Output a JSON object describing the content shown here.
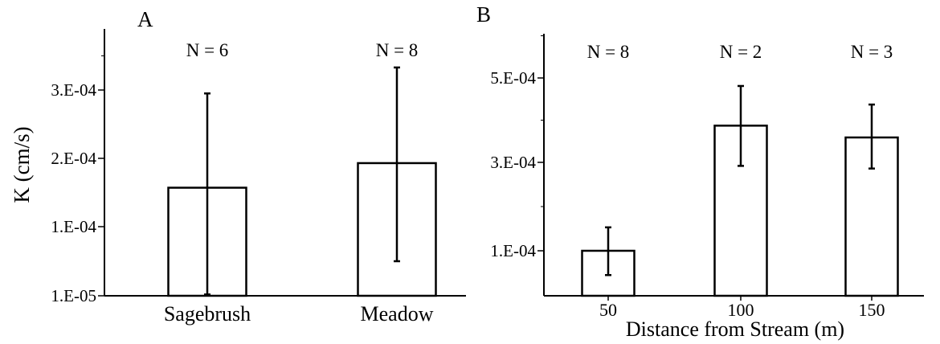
{
  "chart_data": [
    {
      "panel": "A",
      "type": "bar",
      "ylabel": "K (cm/s)",
      "xlabel": "",
      "categories": [
        "Sagebrush",
        "Meadow"
      ],
      "values": [
        0.000157,
        0.000193
      ],
      "error_low": [
        1.17e-05,
        5.5e-05
      ],
      "error_high": [
        0.000295,
        0.000333
      ],
      "n_labels": [
        "N = 6",
        "N = 8"
      ],
      "ylim": [
        1e-05,
        0.00038
      ],
      "y_ticks": [
        {
          "value": 1e-05,
          "label": "1.E-05"
        },
        {
          "value": 0.0001,
          "label": "1.E-04"
        },
        {
          "value": 0.0002,
          "label": "2.E-04"
        },
        {
          "value": 0.0003,
          "label": "3.E-04"
        }
      ],
      "grid": false
    },
    {
      "panel": "B",
      "type": "bar",
      "ylabel": "",
      "xlabel": "Distance from Stream (m)",
      "categories": [
        "50",
        "100",
        "150"
      ],
      "values": [
        0.0001,
        0.000387,
        0.000359
      ],
      "error_low": [
        4.6e-05,
        0.000292,
        0.000286
      ],
      "error_high": [
        0.000153,
        0.000481,
        0.000437
      ],
      "n_labels": [
        "N = 8",
        "N = 2",
        "N = 3"
      ],
      "ylim": [
        0.0,
        0.0006
      ],
      "y_ticks": [
        {
          "value": 0.0001,
          "label": "1.E-04"
        },
        {
          "value": 0.0003,
          "label": "3.E-04"
        },
        {
          "value": 0.0005,
          "label": "5.E-04"
        }
      ],
      "grid": false
    }
  ]
}
